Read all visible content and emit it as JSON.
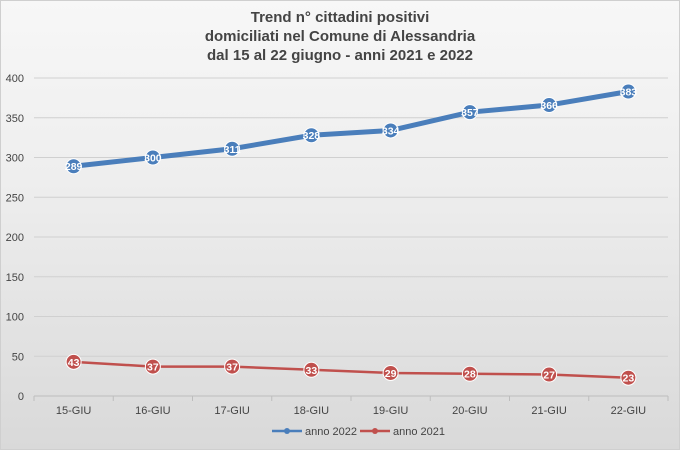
{
  "chart_data": {
    "type": "line",
    "title_lines": [
      "Trend n° cittadini positivi",
      "domiciliati nel Comune di Alessandria",
      "dal 15 al 22 giugno - anni 2021 e 2022"
    ],
    "categories": [
      "15-GIU",
      "16-GIU",
      "17-GIU",
      "18-GIU",
      "19-GIU",
      "20-GIU",
      "21-GIU",
      "22-GIU"
    ],
    "ylim": [
      0,
      400
    ],
    "yticks": [
      0,
      50,
      100,
      150,
      200,
      250,
      300,
      350,
      400
    ],
    "grid": true,
    "legend_position": "bottom",
    "series": [
      {
        "name": "anno 2022",
        "color": "#4a7ebb",
        "values": [
          289,
          300,
          311,
          328,
          334,
          357,
          366,
          383
        ],
        "labels": [
          "289",
          "300",
          "311",
          "328",
          "334",
          "357",
          "366",
          "383"
        ]
      },
      {
        "name": "anno 2021",
        "color": "#c0504d",
        "values": [
          43,
          37,
          37,
          33,
          29,
          28,
          27,
          23
        ],
        "labels": [
          "43",
          "37",
          "37",
          "33",
          "29",
          "28",
          "27",
          "23"
        ]
      }
    ]
  }
}
